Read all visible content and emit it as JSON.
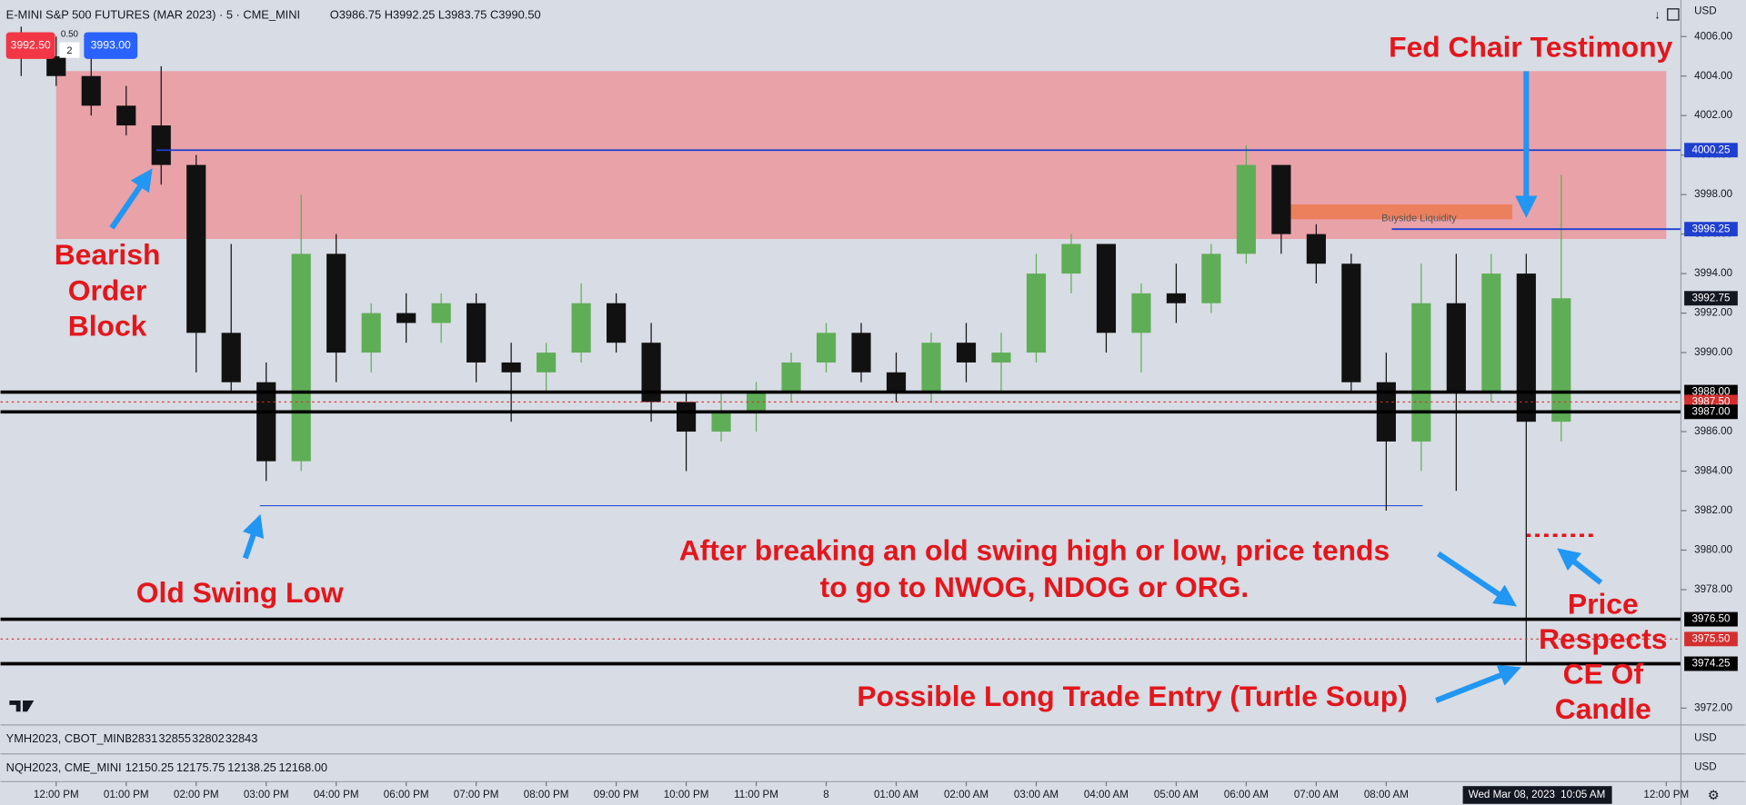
{
  "chart_data": {
    "type": "candlestick",
    "title": "E-MINI S&P 500 FUTURES (MAR 2023) · 5 · CME_MINI",
    "ohlc_text": "O3986.75 H3992.25 L3983.75 C3990.50",
    "bid": "3992.50",
    "spread": "0.50",
    "qty": "2",
    "ask": "3993.00",
    "currency": "USD",
    "up_color": "#5fae57",
    "down_color": "#111111",
    "xlim": [
      -0.795,
      23.21
    ],
    "ylim": [
      3971.15,
      4007.85
    ],
    "xticks": [
      {
        "value": 0,
        "label": "12:00 PM"
      },
      {
        "value": 1,
        "label": "01:00 PM"
      },
      {
        "value": 2,
        "label": "02:00 PM"
      },
      {
        "value": 3,
        "label": "03:00 PM"
      },
      {
        "value": 4,
        "label": "04:00 PM"
      },
      {
        "value": 5,
        "label": "06:00 PM"
      },
      {
        "value": 6,
        "label": "07:00 PM"
      },
      {
        "value": 7,
        "label": "08:00 PM"
      },
      {
        "value": 8,
        "label": "09:00 PM"
      },
      {
        "value": 9,
        "label": "10:00 PM"
      },
      {
        "value": 10,
        "label": "11:00 PM"
      },
      {
        "value": 11,
        "label": "8"
      },
      {
        "value": 12,
        "label": "01:00 AM"
      },
      {
        "value": 13,
        "label": "02:00 AM"
      },
      {
        "value": 14,
        "label": "03:00 AM"
      },
      {
        "value": 15,
        "label": "04:00 AM"
      },
      {
        "value": 16,
        "label": "05:00 AM"
      },
      {
        "value": 17,
        "label": "06:00 AM"
      },
      {
        "value": 18,
        "label": "07:00 AM"
      },
      {
        "value": 19,
        "label": "08:00 AM"
      },
      {
        "value": 23,
        "label": "12:00 PM"
      }
    ],
    "yticks": [
      {
        "value": 4006,
        "label": "4006.00"
      },
      {
        "value": 4004,
        "label": "4004.00"
      },
      {
        "value": 4002,
        "label": "4002.00"
      },
      {
        "value": 4000,
        "label": "4000.00"
      },
      {
        "value": 3998,
        "label": "3998.00"
      },
      {
        "value": 3996,
        "label": "3996.00"
      },
      {
        "value": 3994,
        "label": "3994.00"
      },
      {
        "value": 3992,
        "label": "3992.00"
      },
      {
        "value": 3990,
        "label": "3990.00"
      },
      {
        "value": 3986,
        "label": "3986.00"
      },
      {
        "value": 3984,
        "label": "3984.00"
      },
      {
        "value": 3982,
        "label": "3982.00"
      },
      {
        "value": 3980,
        "label": "3980.00"
      },
      {
        "value": 3978,
        "label": "3978.00"
      },
      {
        "value": 3972,
        "label": "3972.00"
      }
    ],
    "crosshair": {
      "value": 21.08,
      "date": "Wed Mar 08, 2023",
      "time": "10:05 AM"
    },
    "x": [
      -0.5,
      0,
      0.5,
      1,
      1.5,
      2,
      2.5,
      3,
      3.5,
      4,
      4.5,
      5,
      5.5,
      6,
      6.5,
      7,
      7.5,
      8,
      8.5,
      9,
      9.5,
      10,
      10.5,
      11,
      11.5,
      12,
      12.5,
      13,
      13.5,
      14,
      14.5,
      15,
      15.5,
      16,
      16.5,
      17,
      17.5,
      18,
      18.5,
      19,
      19.5,
      20,
      20.5,
      21,
      21.5
    ],
    "open": [
      4005.5,
      4005,
      4004,
      4002.5,
      4001.5,
      3999.5,
      3991,
      3988.5,
      3984.5,
      3995,
      3990,
      3992,
      3991.5,
      3992.5,
      3989.5,
      3989,
      3990,
      3992.5,
      3990.5,
      3987.5,
      3986,
      3987,
      3988,
      3989.5,
      3991,
      3989,
      3988,
      3990.5,
      3989.5,
      3990,
      3994,
      3995.5,
      3991,
      3993,
      3992.5,
      3995,
      3999.5,
      3996,
      3994.5,
      3988.5,
      3985.5,
      3992.5,
      3988,
      3994,
      3986.5
    ],
    "high": [
      4006.5,
      4006,
      4005,
      4003.5,
      4004.5,
      4000,
      3995.5,
      3989.5,
      3998,
      3996,
      3992.5,
      3993,
      3993,
      3993,
      3990.5,
      3990.5,
      3993.5,
      3993,
      3991.5,
      3988,
      3988,
      3988.5,
      3990,
      3991.5,
      3991.5,
      3990,
      3991,
      3991.5,
      3991,
      3995,
      3996,
      3995.5,
      3993.5,
      3994.5,
      3995.5,
      4000.5,
      3999.5,
      3996.5,
      3995,
      3990,
      3994.5,
      3995,
      3995,
      3995,
      3999
    ],
    "low": [
      4004,
      4003.5,
      4002,
      4001,
      3998.5,
      3989,
      3988,
      3983.5,
      3984,
      3988.5,
      3989,
      3990.5,
      3990.5,
      3988.5,
      3986.5,
      3988,
      3989.5,
      3990,
      3986.5,
      3984,
      3985.5,
      3986,
      3987.5,
      3989,
      3988.5,
      3987.5,
      3987.5,
      3988.5,
      3988,
      3989.5,
      3993,
      3990,
      3989,
      3991.5,
      3992,
      3994.5,
      3995,
      3993.5,
      3988,
      3982,
      3984,
      3983,
      3987.5,
      3974.25,
      3985.5
    ],
    "close": [
      4005,
      4004,
      4002.5,
      4001.5,
      3999.5,
      3991,
      3988.5,
      3984.5,
      3995,
      3990,
      3992,
      3991.5,
      3992.5,
      3989.5,
      3989,
      3990,
      3992.5,
      3990.5,
      3987.5,
      3986,
      3987,
      3988,
      3989.5,
      3991,
      3989,
      3988,
      3990.5,
      3989.5,
      3990,
      3994,
      3995.5,
      3991,
      3993,
      3992.5,
      3995,
      3999.5,
      3996,
      3994.5,
      3988.5,
      3985.5,
      3992.5,
      3988,
      3994,
      3986.5,
      3992.75
    ],
    "zones": [
      {
        "low": 3995.75,
        "high": 4004.25,
        "from": -0.0,
        "to": 23.0,
        "color": "#e8a2a8"
      },
      {
        "low": 3996.75,
        "high": 3997.5,
        "from": 17.5,
        "to": 20.8,
        "color": "#ec7f5c",
        "label": "Buyside Liquidity"
      }
    ],
    "levels": [
      {
        "value": 4000.25,
        "label": "4000.25",
        "color": "#1f3fd1",
        "width": 1.5,
        "from": 1.43
      },
      {
        "value": 3996.25,
        "label": "3996.25",
        "color": "#1f3fd1",
        "width": 1.5,
        "from": 19.08
      },
      {
        "value": 3992.75,
        "label": "3992.75",
        "color": "#131722",
        "width": 0
      },
      {
        "value": 3988.0,
        "label": "3988.00",
        "color": "#000000",
        "width": 3
      },
      {
        "value": 3987.5,
        "label": "3987.50",
        "color": "#d32f2f",
        "width": 1,
        "dash": true
      },
      {
        "value": 3987.0,
        "label": "3987.00",
        "color": "#000000",
        "width": 3
      },
      {
        "value": 3976.5,
        "label": "3976.50",
        "color": "#000000",
        "width": 3
      },
      {
        "value": 3975.5,
        "label": "3975.50",
        "color": "#d32f2f",
        "width": 1,
        "dash": true
      },
      {
        "value": 3974.25,
        "label": "3974.25",
        "color": "#000000",
        "width": 3
      }
    ],
    "segments": [
      {
        "value": 3982.25,
        "from": 2.91,
        "to": 19.52,
        "color": "#2e4fd6",
        "width": 1
      },
      {
        "value": 3980.75,
        "from": 21.0,
        "to": 21.99,
        "color": "#e3161c",
        "width": 3,
        "dash": true
      }
    ],
    "annotations": [
      {
        "lines": [
          "Fed Chair Testimony"
        ]
      },
      {
        "lines": [
          "Bearish",
          "Order",
          "Block"
        ]
      },
      {
        "lines": [
          "Old Swing Low"
        ]
      },
      {
        "lines": [
          "After breaking an old swing high or low, price tends",
          "to go to NWOG, NDOG or ORG."
        ]
      },
      {
        "lines": [
          "Possible Long Trade Entry (Turtle Soup)"
        ]
      },
      {
        "lines": [
          "Price",
          "Respects",
          "CE Of",
          "Candle"
        ]
      }
    ],
    "panes": [
      {
        "name": "YMH2023, CBOT_MINI",
        "values": [
          32831,
          32855,
          32802,
          32843
        ]
      },
      {
        "name": "NQH2023, CME_MINI",
        "values": [
          "12150.25",
          "12175.75",
          "12138.25",
          "12168.00"
        ]
      }
    ]
  }
}
